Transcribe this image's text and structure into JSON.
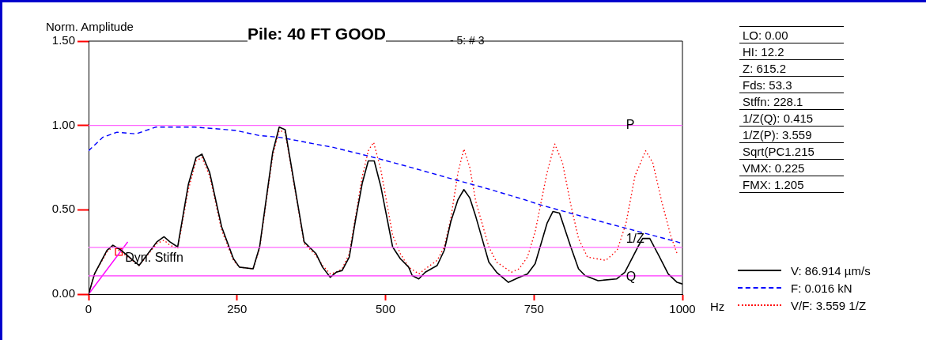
{
  "chart_data": {
    "type": "line",
    "title": "Pile: 40 FT GOOD",
    "subtitle": "- 5: # 3",
    "xlabel": "Hz",
    "ylabel": "Norm. Amplitude",
    "xlim": [
      0,
      1000
    ],
    "xticks": [
      0,
      250,
      500,
      750,
      1000
    ],
    "ylim": [
      0,
      1.5
    ],
    "yticks": [
      {
        "value": 0,
        "label": "0.00"
      },
      {
        "value": 0.5,
        "label": "0.50"
      },
      {
        "value": 1,
        "label": "1.00"
      },
      {
        "value": 1.5,
        "label": "1.50"
      }
    ],
    "grid": false,
    "legend": "bottom right",
    "marker": "none",
    "series": [
      {
        "name": "V: 86.914 µm/s",
        "color": "#000000",
        "line_style": "solid",
        "x": [
          0,
          10,
          31,
          41,
          55,
          85,
          115,
          127,
          137,
          150,
          168,
          181,
          191,
          204,
          224,
          244,
          254,
          277,
          288,
          310,
          321,
          331,
          363,
          383,
          394,
          407,
          417,
          427,
          439,
          450,
          461,
          471,
          481,
          492,
          512,
          525,
          539,
          545,
          556,
          567,
          587,
          599,
          610,
          622,
          632,
          642,
          652,
          674,
          687,
          707,
          725,
          739,
          752,
          772,
          782,
          793,
          812,
          825,
          836,
          858,
          889,
          903,
          925,
          933,
          945,
          960,
          976,
          991,
          1000
        ],
        "values": [
          0,
          0.12,
          0.26,
          0.29,
          0.26,
          0.17,
          0.31,
          0.34,
          0.31,
          0.28,
          0.65,
          0.81,
          0.83,
          0.72,
          0.4,
          0.21,
          0.16,
          0.15,
          0.28,
          0.84,
          0.99,
          0.975,
          0.31,
          0.24,
          0.16,
          0.1,
          0.13,
          0.14,
          0.22,
          0.45,
          0.66,
          0.79,
          0.79,
          0.64,
          0.28,
          0.21,
          0.16,
          0.11,
          0.09,
          0.13,
          0.17,
          0.26,
          0.43,
          0.56,
          0.62,
          0.57,
          0.46,
          0.19,
          0.13,
          0.07,
          0.1,
          0.12,
          0.18,
          0.42,
          0.49,
          0.48,
          0.28,
          0.15,
          0.11,
          0.08,
          0.09,
          0.13,
          0.28,
          0.33,
          0.33,
          0.23,
          0.12,
          0.07,
          0.06
        ]
      },
      {
        "name": "F: 0.016 kN",
        "color": "#0000ff",
        "line_style": "dashed",
        "x": [
          0,
          24,
          48,
          80,
          113,
          150,
          179,
          217,
          248,
          288,
          321,
          352,
          381,
          412,
          441,
          481,
          539,
          605,
          667,
          734,
          760,
          863,
          927,
          991,
          1000
        ],
        "values": [
          0.85,
          0.93,
          0.96,
          0.95,
          0.99,
          0.99,
          0.99,
          0.98,
          0.97,
          0.94,
          0.93,
          0.91,
          0.89,
          0.87,
          0.845,
          0.81,
          0.755,
          0.69,
          0.63,
          0.56,
          0.53,
          0.43,
          0.37,
          0.31,
          0.3
        ]
      },
      {
        "name": "V/F: 3.559 1/Z",
        "color": "#ff0000",
        "line_style": "dotted",
        "x": [
          0,
          10,
          31,
          41,
          55,
          85,
          115,
          127,
          137,
          150,
          168,
          181,
          191,
          204,
          224,
          244,
          254,
          277,
          288,
          310,
          321,
          331,
          363,
          383,
          394,
          407,
          417,
          427,
          439,
          450,
          461,
          471,
          480,
          492,
          512,
          525,
          539,
          556,
          567,
          587,
          599,
          610,
          622,
          632,
          642,
          652,
          674,
          687,
          712,
          725,
          739,
          752,
          772,
          785,
          798,
          812,
          825,
          840,
          871,
          890,
          905,
          920,
          938,
          950,
          965,
          980,
          991
        ],
        "values": [
          0,
          0.12,
          0.25,
          0.28,
          0.25,
          0.17,
          0.3,
          0.32,
          0.29,
          0.27,
          0.62,
          0.79,
          0.81,
          0.7,
          0.38,
          0.2,
          0.16,
          0.15,
          0.27,
          0.82,
          0.97,
          0.96,
          0.3,
          0.23,
          0.17,
          0.12,
          0.13,
          0.15,
          0.24,
          0.47,
          0.7,
          0.85,
          0.9,
          0.74,
          0.35,
          0.24,
          0.16,
          0.12,
          0.15,
          0.2,
          0.28,
          0.45,
          0.72,
          0.86,
          0.75,
          0.55,
          0.28,
          0.19,
          0.13,
          0.15,
          0.22,
          0.37,
          0.72,
          0.89,
          0.78,
          0.53,
          0.33,
          0.22,
          0.2,
          0.26,
          0.42,
          0.7,
          0.85,
          0.78,
          0.55,
          0.35,
          0.24
        ]
      },
      {
        "type": "line",
        "color": "#ff00ff",
        "line_style": "solid",
        "x": [
          0,
          66
        ],
        "values": [
          0,
          0.31
        ]
      },
      {
        "type": "scatter",
        "color": "#ff0000",
        "marker": "square",
        "x": [
          51
        ],
        "values": [
          0.25
        ]
      }
    ],
    "ref_lines": [
      {
        "axis": "y",
        "value": 1,
        "label": "P",
        "color": "#ff66ff"
      },
      {
        "axis": "y",
        "value": 0.277,
        "label": "1/Z",
        "color": "#ff66ff"
      },
      {
        "axis": "y",
        "value": 0.108,
        "label": "Q",
        "color": "#ff33ff"
      }
    ],
    "annotations": [
      {
        "text": "Dyn. Stiffn",
        "x": 51,
        "y": 0.25
      },
      "LO: 0.00",
      "HI: 12.2",
      "Z: 615.2",
      "Fds: 53.3",
      "Stffn: 228.1",
      "1/Z(Q): 0.415",
      "1/Z(P): 3.559",
      "Sqrt(PC1.215",
      "VMX: 0.225",
      "FMX: 1.205"
    ]
  }
}
